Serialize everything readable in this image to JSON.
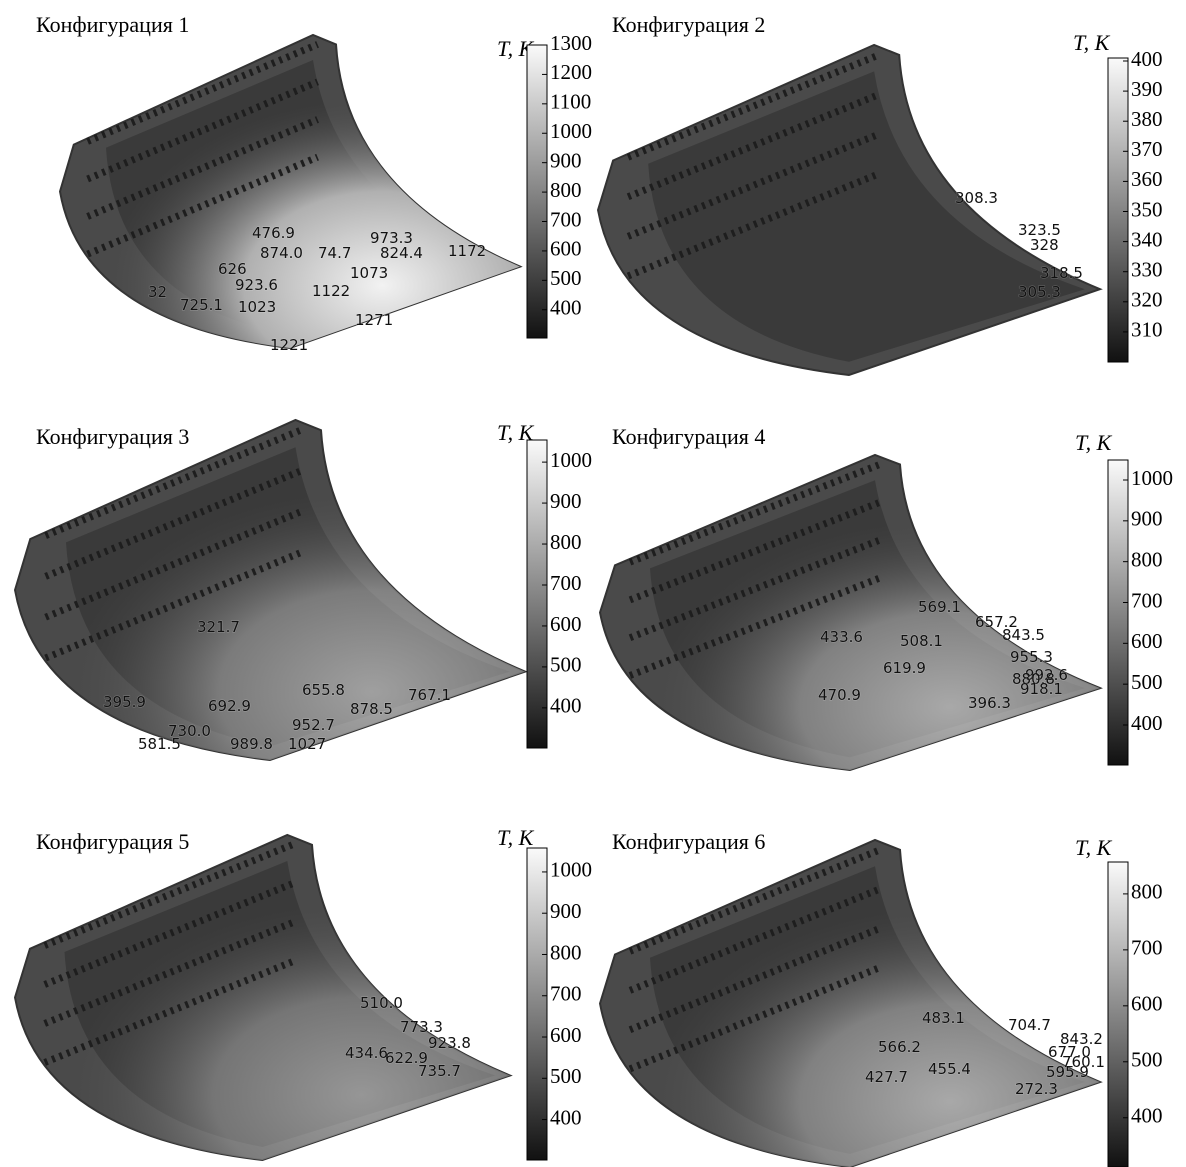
{
  "panels": [
    {
      "title": "Конфигурация 1",
      "colorbar": {
        "label": "T, K",
        "ylim": [
          304,
          1300
        ],
        "yticks": [
          400,
          500,
          600,
          700,
          800,
          900,
          1000,
          1100,
          1200,
          1300
        ]
      },
      "labels": [
        "476.9",
        "874.0",
        "74.7",
        "973.3",
        "824.4",
        "1172",
        "1073",
        "626",
        "923.6",
        "1122",
        "32",
        "725.1",
        "1023",
        "1271",
        "1221"
      ]
    },
    {
      "title": "Конфигурация 2",
      "colorbar": {
        "label": "T, K",
        "ylim": [
          300,
          401
        ],
        "yticks": [
          310,
          320,
          330,
          340,
          350,
          360,
          370,
          380,
          390,
          400
        ]
      },
      "labels": [
        "308.3",
        "323.5",
        "328",
        "318.5",
        "305.3"
      ]
    },
    {
      "title": "Конфигурация 3",
      "colorbar": {
        "label": "T, K",
        "ylim": [
          302,
          1054
        ],
        "yticks": [
          400,
          500,
          600,
          700,
          800,
          900,
          1000
        ]
      },
      "labels": [
        "321.7",
        "655.8",
        "767.1",
        "395.9",
        "692.9",
        "878.5",
        "952.7",
        "730.0",
        "581.5",
        "989.8",
        "1027"
      ]
    },
    {
      "title": "Конфигурация 4",
      "colorbar": {
        "label": "T, K",
        "ylim": [
          302,
          1049
        ],
        "yticks": [
          400,
          500,
          600,
          700,
          800,
          900,
          1000
        ]
      },
      "labels": [
        "569.1",
        "657.2",
        "843.5",
        "433.6",
        "508.1",
        "955.3",
        "619.9",
        "992.6",
        "880.8",
        "918.1",
        "470.9",
        "396.3"
      ]
    },
    {
      "title": "Конфигурация 5",
      "colorbar": {
        "label": "T, K",
        "ylim": [
          302,
          1058
        ],
        "yticks": [
          400,
          500,
          600,
          700,
          800,
          900,
          1000
        ]
      },
      "labels": [
        "510.0",
        "773.3",
        "923.8",
        "622.9",
        "735.7",
        "434.6"
      ]
    },
    {
      "title": "Конфигурация 6",
      "colorbar": {
        "label": "T, K",
        "ylim": [
          312,
          857
        ],
        "yticks": [
          400,
          500,
          600,
          700,
          800
        ]
      },
      "labels": [
        "483.1",
        "704.7",
        "843.2",
        "566.2",
        "677.0",
        "760.1",
        "427.7",
        "455.4",
        "595.9",
        "272.3"
      ]
    }
  ]
}
